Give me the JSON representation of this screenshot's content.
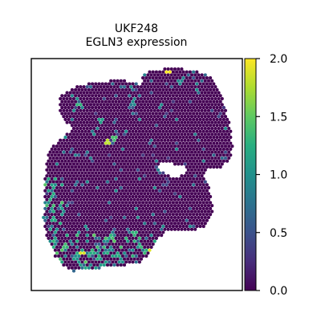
{
  "chart_data": {
    "type": "heatmap",
    "title": "UKF248",
    "subtitle": "EGLN3 expression",
    "xlabel": "",
    "ylabel": "",
    "colormap": "viridis",
    "color_range": [
      0.0,
      2.0
    ],
    "colorbar": {
      "ticks": [
        0.0,
        0.5,
        1.0,
        1.5,
        2.0
      ],
      "tick_labels": [
        "0.0",
        "0.5",
        "1.0",
        "1.5",
        "2.0"
      ],
      "placement": "right"
    },
    "grid": false,
    "axes_ticks": false,
    "spots_shown": "hexagonal spatial spot grid; most spots near 0.0, scattered spots 0.5–2.0 concentrated at lower-left edge"
  }
}
